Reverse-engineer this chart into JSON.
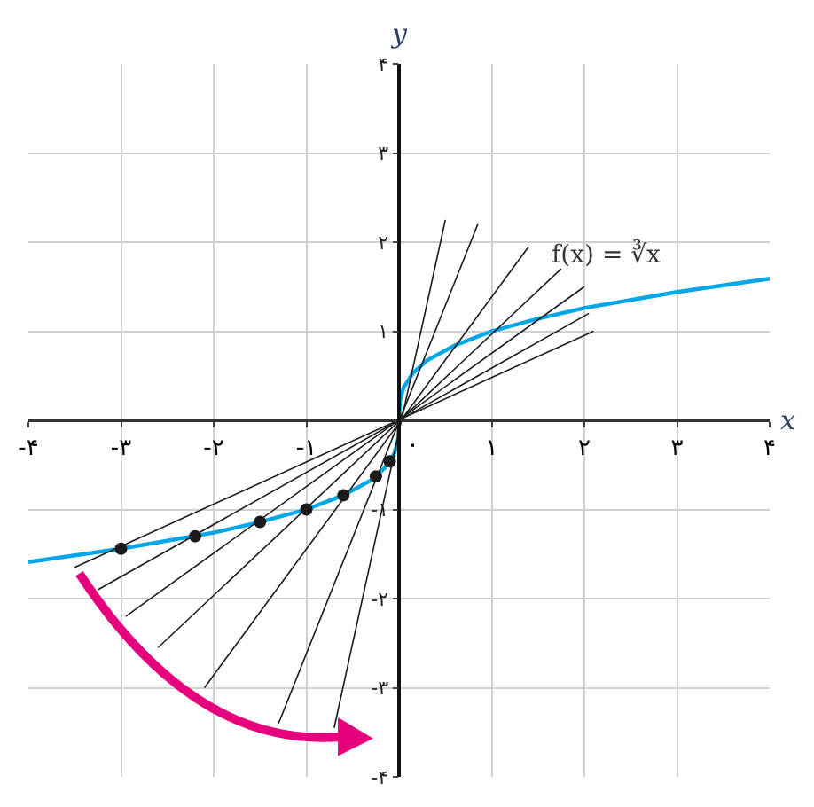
{
  "chart_data": {
    "type": "line",
    "xlabel": "x",
    "ylabel": "y",
    "xlim": [
      -4,
      4
    ],
    "ylim": [
      -4,
      4
    ],
    "xticks": [
      {
        "value": -4,
        "label": "-۴"
      },
      {
        "value": -3,
        "label": "-۳"
      },
      {
        "value": -2,
        "label": "-۲"
      },
      {
        "value": -1,
        "label": "-۱"
      },
      {
        "value": 0,
        "label": "۰"
      },
      {
        "value": 1,
        "label": "۱"
      },
      {
        "value": 2,
        "label": "۲"
      },
      {
        "value": 3,
        "label": "۳"
      },
      {
        "value": 4,
        "label": "۴"
      }
    ],
    "yticks": [
      {
        "value": -4,
        "label": "-۴"
      },
      {
        "value": -3,
        "label": "-۳"
      },
      {
        "value": -2,
        "label": "-۲"
      },
      {
        "value": -1,
        "label": "-۱"
      },
      {
        "value": 1,
        "label": "۱"
      },
      {
        "value": 2,
        "label": "۲"
      },
      {
        "value": 3,
        "label": "۳"
      },
      {
        "value": 4,
        "label": "۴"
      }
    ],
    "grid": true,
    "annotations": [
      "f(x) = ∛x"
    ],
    "series": [
      {
        "color": "#00a6e6",
        "x": [
          -4,
          -3,
          -2,
          -1.5,
          -1,
          -0.6,
          -0.3,
          -0.15,
          -0.05,
          -0.01,
          0,
          0.01,
          0.05,
          0.15,
          0.3,
          0.6,
          1,
          1.5,
          2,
          3,
          4
        ],
        "values": [
          -1.59,
          -1.44,
          -1.26,
          -1.14,
          -1,
          -0.84,
          -0.67,
          -0.53,
          -0.37,
          -0.22,
          0,
          0.22,
          0.37,
          0.53,
          0.67,
          0.84,
          1,
          1.14,
          1.26,
          1.44,
          1.59
        ]
      },
      {
        "type": "line",
        "color": "#1a1a1a",
        "x": [
          -3.5,
          2.1
        ],
        "values": [
          -1.65,
          1.0
        ]
      },
      {
        "type": "line",
        "color": "#1a1a1a",
        "x": [
          -3.25,
          2.05
        ],
        "values": [
          -1.9,
          1.2
        ]
      },
      {
        "type": "line",
        "color": "#1a1a1a",
        "x": [
          -2.95,
          2.0
        ],
        "values": [
          -2.2,
          1.5
        ]
      },
      {
        "type": "line",
        "color": "#1a1a1a",
        "x": [
          -2.6,
          1.75
        ],
        "values": [
          -2.55,
          1.7
        ]
      },
      {
        "type": "line",
        "color": "#1a1a1a",
        "x": [
          -2.1,
          1.4
        ],
        "values": [
          -3.0,
          1.95
        ]
      },
      {
        "type": "line",
        "color": "#1a1a1a",
        "x": [
          -1.3,
          0.85
        ],
        "values": [
          -3.4,
          2.2
        ]
      },
      {
        "type": "line",
        "color": "#1a1a1a",
        "x": [
          -0.7,
          0.5
        ],
        "values": [
          -3.45,
          2.25
        ]
      },
      {
        "type": "scatter",
        "color": "#1a1a1a",
        "marker": "circle",
        "x": [
          -3,
          -2.2,
          -1.5,
          -1,
          -0.6,
          -0.25,
          -0.1
        ],
        "values": [
          -1.44,
          -1.3,
          -1.14,
          -1,
          -0.84,
          -0.63,
          -0.46
        ]
      }
    ]
  }
}
